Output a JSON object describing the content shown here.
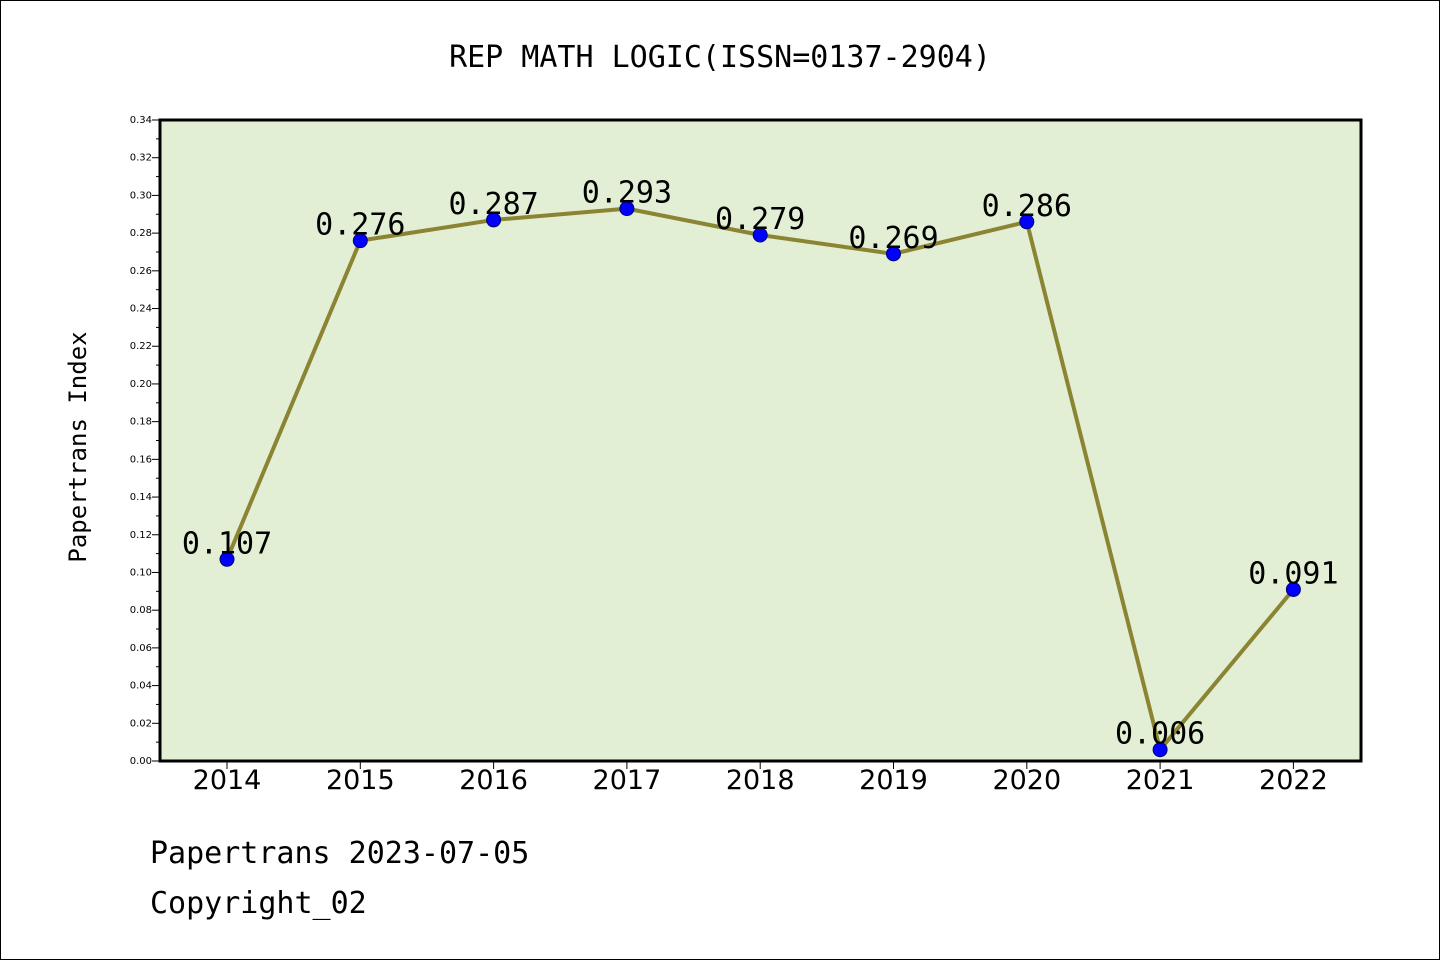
{
  "chart_data": {
    "type": "line",
    "title": "REP MATH LOGIC(ISSN=0137-2904)",
    "ylabel": "Papertrans Index",
    "xlabel": "",
    "categories": [
      "2014",
      "2015",
      "2016",
      "2017",
      "2018",
      "2019",
      "2020",
      "2021",
      "2022"
    ],
    "series": [
      {
        "values": [
          0.107,
          0.276,
          0.287,
          0.293,
          0.279,
          0.269,
          0.286,
          0.006,
          0.091
        ],
        "labels": [
          "0.107",
          "0.276",
          "0.287",
          "0.293",
          "0.279",
          "0.269",
          "0.286",
          "0.006",
          "0.091"
        ]
      }
    ],
    "ylim": [
      0,
      0.34
    ],
    "yticks": [
      "0.00",
      "0.02",
      "0.04",
      "0.06",
      "0.08",
      "0.10",
      "0.12",
      "0.14",
      "0.16",
      "0.18",
      "0.20",
      "0.22",
      "0.24",
      "0.26",
      "0.28",
      "0.30",
      "0.32",
      "0.34"
    ],
    "grid": false,
    "colors": {
      "plot_background": "#e2efd4",
      "line": "#8b8433",
      "marker": "#0000ff"
    }
  },
  "footer": {
    "date_line": "Papertrans 2023-07-05",
    "copyright_line": "Copyright_02"
  }
}
